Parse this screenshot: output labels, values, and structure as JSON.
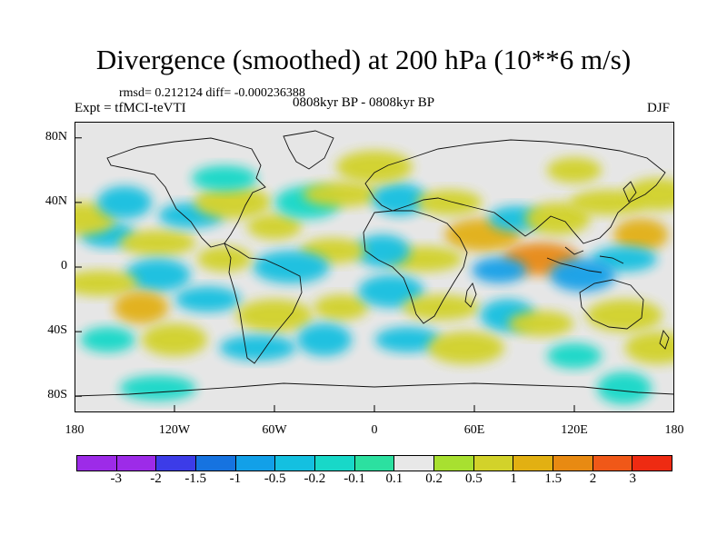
{
  "chart_data": {
    "type": "heatmap",
    "title": "Divergence (smoothed) at 200 hPa (10**6 m/s)",
    "stats": {
      "rmsd": "rmsd= 0.212124",
      "diff": "diff= -0.000236388"
    },
    "expt": "Expt = tfMCI-teVTI",
    "period": "0808kyr BP - 0808kyr BP",
    "season": "DJF",
    "x_ticks": [
      "180",
      "120W",
      "60W",
      "0",
      "60E",
      "120E",
      "180"
    ],
    "y_ticks": [
      "80N",
      "40N",
      "0",
      "40S",
      "80S"
    ],
    "x_range": [
      -180,
      180
    ],
    "y_range": [
      -90,
      90
    ],
    "colorbar": {
      "labels": [
        "-3",
        "-2",
        "-1.5",
        "-1",
        "-0.5",
        "-0.2",
        "-0.1",
        "0.1",
        "0.2",
        "0.5",
        "1",
        "1.5",
        "2",
        "3"
      ],
      "colors": [
        "#9d2be8",
        "#3c3ce8",
        "#1673e0",
        "#12a0e8",
        "#14c0e0",
        "#18d8c8",
        "#2ce0a0",
        "#e8e8e8",
        "#a8e030",
        "#d2d22a",
        "#e2b012",
        "#e88a12",
        "#f05818",
        "#ee2b12"
      ]
    },
    "fields": [
      {
        "lon": -160,
        "lat": 20,
        "value": -0.5
      },
      {
        "lon": -175,
        "lat": 30,
        "value": 0.5
      },
      {
        "lon": -130,
        "lat": 15,
        "value": 0.5
      },
      {
        "lon": -150,
        "lat": 40,
        "value": -0.5
      },
      {
        "lon": -110,
        "lat": 32,
        "value": -0.5
      },
      {
        "lon": -85,
        "lat": 40,
        "value": 0.5
      },
      {
        "lon": -60,
        "lat": 25,
        "value": 0.5
      },
      {
        "lon": -40,
        "lat": 40,
        "value": -0.2
      },
      {
        "lon": -20,
        "lat": 45,
        "value": 0.5
      },
      {
        "lon": 15,
        "lat": 42,
        "value": -0.5
      },
      {
        "lon": 45,
        "lat": 40,
        "value": 0.5
      },
      {
        "lon": 65,
        "lat": 20,
        "value": 1
      },
      {
        "lon": 85,
        "lat": 30,
        "value": -0.5
      },
      {
        "lon": 110,
        "lat": 30,
        "value": 0.5
      },
      {
        "lon": 140,
        "lat": 40,
        "value": 0.5
      },
      {
        "lon": 160,
        "lat": 20,
        "value": 1
      },
      {
        "lon": 150,
        "lat": 5,
        "value": -0.5
      },
      {
        "lon": 100,
        "lat": 5,
        "value": 1.5
      },
      {
        "lon": 75,
        "lat": -2,
        "value": -1
      },
      {
        "lon": 125,
        "lat": -5,
        "value": -1
      },
      {
        "lon": 30,
        "lat": 5,
        "value": 0.5
      },
      {
        "lon": 5,
        "lat": 10,
        "value": -0.5
      },
      {
        "lon": -25,
        "lat": 10,
        "value": 0.5
      },
      {
        "lon": -50,
        "lat": 0,
        "value": -0.5
      },
      {
        "lon": -90,
        "lat": 5,
        "value": 0.5
      },
      {
        "lon": -130,
        "lat": -5,
        "value": -0.5
      },
      {
        "lon": -165,
        "lat": -10,
        "value": 0.5
      },
      {
        "lon": -140,
        "lat": -25,
        "value": 1
      },
      {
        "lon": -100,
        "lat": -20,
        "value": -0.5
      },
      {
        "lon": -60,
        "lat": -30,
        "value": 0.5
      },
      {
        "lon": -20,
        "lat": -25,
        "value": 0.5
      },
      {
        "lon": 10,
        "lat": -15,
        "value": -0.5
      },
      {
        "lon": 40,
        "lat": -25,
        "value": 0.5
      },
      {
        "lon": 80,
        "lat": -30,
        "value": -0.5
      },
      {
        "lon": 100,
        "lat": -35,
        "value": 0.5
      },
      {
        "lon": 150,
        "lat": -30,
        "value": 0.5
      },
      {
        "lon": -160,
        "lat": -45,
        "value": -0.2
      },
      {
        "lon": -120,
        "lat": -45,
        "value": 0.5
      },
      {
        "lon": -70,
        "lat": -50,
        "value": -0.5
      },
      {
        "lon": -30,
        "lat": -45,
        "value": -0.5
      },
      {
        "lon": 20,
        "lat": -45,
        "value": -0.5
      },
      {
        "lon": 55,
        "lat": -50,
        "value": 0.5
      },
      {
        "lon": 120,
        "lat": -55,
        "value": -0.2
      },
      {
        "lon": 170,
        "lat": -50,
        "value": 0.5
      },
      {
        "lon": -130,
        "lat": -75,
        "value": -0.2
      },
      {
        "lon": 150,
        "lat": -75,
        "value": -0.2
      },
      {
        "lon": -90,
        "lat": 55,
        "value": -0.2
      },
      {
        "lon": 0,
        "lat": 62,
        "value": 0.5
      },
      {
        "lon": 120,
        "lat": 60,
        "value": 0.5
      },
      {
        "lon": 170,
        "lat": 45,
        "value": 0.5
      }
    ]
  }
}
